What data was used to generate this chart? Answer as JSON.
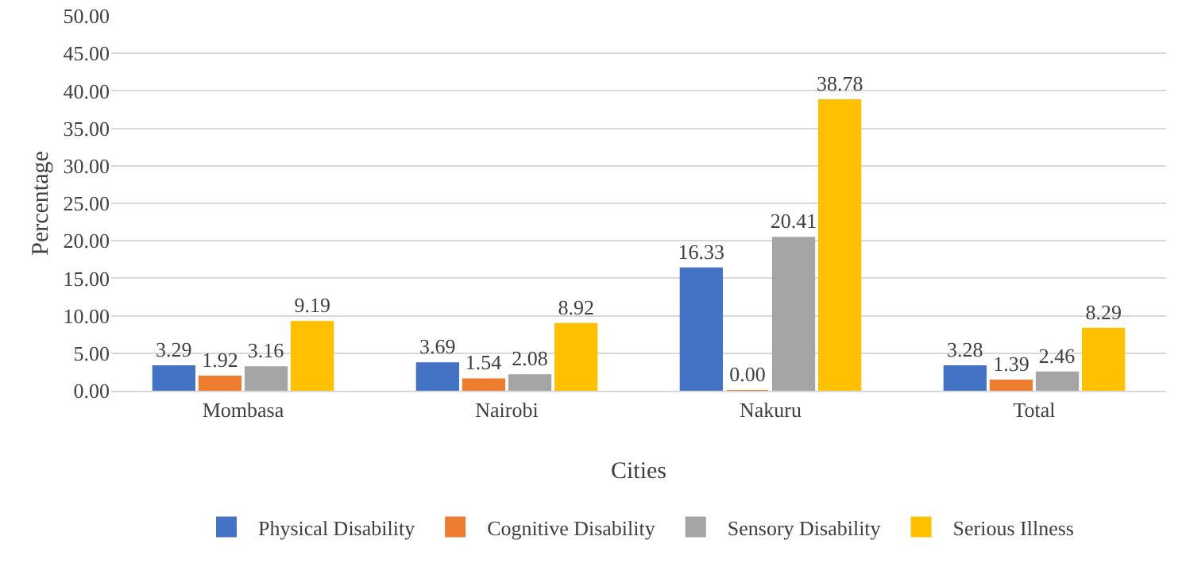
{
  "chart_data": {
    "type": "bar",
    "xlabel": "Cities",
    "ylabel": "Percentage",
    "categories": [
      "Mombasa",
      "Nairobi",
      "Nakuru",
      "Total"
    ],
    "series": [
      {
        "name": "Physical Disability",
        "color": "#4472c4",
        "values": [
          3.29,
          3.69,
          16.33,
          3.28
        ],
        "value_labels": [
          "3.29",
          "3.69",
          "16.33",
          "3.28"
        ]
      },
      {
        "name": "Cognitive Disability",
        "color": "#ed7d31",
        "values": [
          1.92,
          1.54,
          0,
          1.39
        ],
        "value_labels": [
          "1.92",
          "1.54",
          "0.00",
          "1.39"
        ]
      },
      {
        "name": "Sensory Disability",
        "color": "#a5a5a5",
        "values": [
          3.16,
          2.08,
          20.41,
          2.46
        ],
        "value_labels": [
          "3.16",
          "2.08",
          "20.41",
          "2.46"
        ]
      },
      {
        "name": "Serious Illness",
        "color": "#ffc000",
        "values": [
          9.19,
          8.92,
          38.78,
          8.29
        ],
        "value_labels": [
          "9.19",
          "8.92",
          "38.78",
          "8.29"
        ]
      }
    ],
    "ylim": [
      0,
      50
    ],
    "yticks": [
      {
        "value": 0,
        "label": "0.00"
      },
      {
        "value": 5,
        "label": "5.00"
      },
      {
        "value": 10,
        "label": "10.00"
      },
      {
        "value": 15,
        "label": "15.00"
      },
      {
        "value": 20,
        "label": "20.00"
      },
      {
        "value": 25,
        "label": "25.00"
      },
      {
        "value": 30,
        "label": "30.00"
      },
      {
        "value": 35,
        "label": "35.00"
      },
      {
        "value": 40,
        "label": "40.00"
      },
      {
        "value": 45,
        "label": "45.00"
      },
      {
        "value": 50,
        "label": "50.00"
      }
    ],
    "grid": "y",
    "legend": "bottom"
  }
}
